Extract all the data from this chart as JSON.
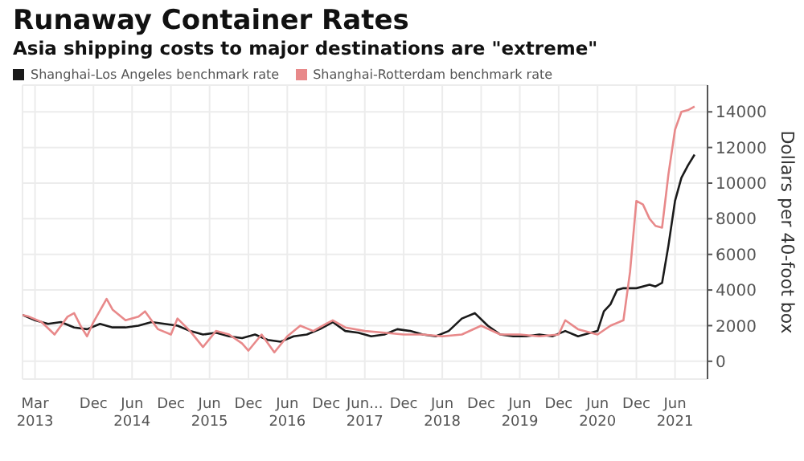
{
  "chart_data": {
    "type": "line",
    "title": "Runaway Container Rates",
    "subtitle": "Asia shipping costs to major destinations are \"extreme\"",
    "ylabel": "Dollars per 40-foot box",
    "xlim": [
      "2013-01-01",
      "2021-11-01"
    ],
    "xticks": [
      {
        "value": "2013-03",
        "label": "Mar\n2013"
      },
      {
        "value": "2013-12",
        "label": "Dec"
      },
      {
        "value": "2014-06",
        "label": "Jun\n2014"
      },
      {
        "value": "2014-12",
        "label": "Dec"
      },
      {
        "value": "2015-06",
        "label": "Jun\n2015"
      },
      {
        "value": "2015-12",
        "label": "Dec"
      },
      {
        "value": "2016-06",
        "label": "Jun\n2016"
      },
      {
        "value": "2016-12",
        "label": "Dec"
      },
      {
        "value": "2017-06",
        "label": "Jun...\n2017"
      },
      {
        "value": "2017-12",
        "label": "Dec"
      },
      {
        "value": "2018-06",
        "label": "Jun\n2018"
      },
      {
        "value": "2018-12",
        "label": "Dec"
      },
      {
        "value": "2019-06",
        "label": "Jun\n2019"
      },
      {
        "value": "2019-12",
        "label": "Dec"
      },
      {
        "value": "2020-06",
        "label": "Jun\n2020"
      },
      {
        "value": "2020-12",
        "label": "Dec"
      },
      {
        "value": "2021-06",
        "label": "Jun\n2021"
      }
    ],
    "ylim": [
      -1000,
      15500
    ],
    "yticks": [
      0,
      2000,
      4000,
      6000,
      8000,
      10000,
      12000,
      14000
    ],
    "grid": true,
    "legend": "top left",
    "marker": "none",
    "line_style": "solid",
    "series": [
      {
        "name": "Shanghai-Los Angeles benchmark rate",
        "color": "#1a1a1a",
        "x": [
          "2013-01",
          "2013-03",
          "2013-05",
          "2013-07",
          "2013-09",
          "2013-11",
          "2014-01",
          "2014-03",
          "2014-05",
          "2014-07",
          "2014-09",
          "2014-11",
          "2015-01",
          "2015-03",
          "2015-05",
          "2015-07",
          "2015-09",
          "2015-11",
          "2016-01",
          "2016-03",
          "2016-05",
          "2016-07",
          "2016-09",
          "2016-11",
          "2017-01",
          "2017-03",
          "2017-05",
          "2017-07",
          "2017-09",
          "2017-11",
          "2018-01",
          "2018-03",
          "2018-05",
          "2018-07",
          "2018-09",
          "2018-11",
          "2019-01",
          "2019-03",
          "2019-05",
          "2019-07",
          "2019-09",
          "2019-11",
          "2020-01",
          "2020-03",
          "2020-05",
          "2020-06",
          "2020-07",
          "2020-08",
          "2020-09",
          "2020-10",
          "2020-12",
          "2021-02",
          "2021-03",
          "2021-04",
          "2021-05",
          "2021-06",
          "2021-07",
          "2021-08",
          "2021-09"
        ],
        "values": [
          2600,
          2300,
          2100,
          2200,
          1900,
          1800,
          2100,
          1900,
          1900,
          2000,
          2200,
          2100,
          2000,
          1700,
          1500,
          1600,
          1400,
          1300,
          1500,
          1200,
          1100,
          1400,
          1500,
          1800,
          2200,
          1700,
          1600,
          1400,
          1500,
          1800,
          1700,
          1500,
          1400,
          1700,
          2400,
          2700,
          2000,
          1500,
          1400,
          1400,
          1500,
          1400,
          1700,
          1400,
          1600,
          1700,
          2800,
          3200,
          4000,
          4100,
          4100,
          4300,
          4200,
          4400,
          6500,
          9000,
          10300,
          11000,
          11600
        ]
      },
      {
        "name": "Shanghai-Rotterdam benchmark rate",
        "color": "#e8898a",
        "x": [
          "2013-01",
          "2013-02",
          "2013-04",
          "2013-06",
          "2013-08",
          "2013-09",
          "2013-10",
          "2013-11",
          "2013-12",
          "2014-02",
          "2014-03",
          "2014-05",
          "2014-07",
          "2014-08",
          "2014-10",
          "2014-12",
          "2015-01",
          "2015-03",
          "2015-05",
          "2015-07",
          "2015-09",
          "2015-11",
          "2015-12",
          "2016-02",
          "2016-04",
          "2016-06",
          "2016-08",
          "2016-10",
          "2016-12",
          "2017-01",
          "2017-03",
          "2017-06",
          "2017-09",
          "2017-12",
          "2018-03",
          "2018-06",
          "2018-09",
          "2018-12",
          "2019-03",
          "2019-06",
          "2019-09",
          "2019-12",
          "2020-01",
          "2020-03",
          "2020-06",
          "2020-08",
          "2020-10",
          "2020-11",
          "2020-12",
          "2021-01",
          "2021-02",
          "2021-03",
          "2021-04",
          "2021-05",
          "2021-06",
          "2021-07",
          "2021-08",
          "2021-09"
        ],
        "values": [
          2600,
          2500,
          2200,
          1500,
          2500,
          2700,
          2000,
          1400,
          2200,
          3500,
          2900,
          2300,
          2500,
          2800,
          1800,
          1500,
          2400,
          1700,
          800,
          1700,
          1500,
          1000,
          600,
          1500,
          500,
          1400,
          2000,
          1700,
          2100,
          2300,
          1900,
          1700,
          1600,
          1500,
          1500,
          1400,
          1500,
          2000,
          1500,
          1500,
          1400,
          1500,
          2300,
          1800,
          1500,
          2000,
          2300,
          5000,
          9000,
          8800,
          8000,
          7600,
          7500,
          10500,
          13000,
          14000,
          14100,
          14300
        ]
      }
    ]
  }
}
